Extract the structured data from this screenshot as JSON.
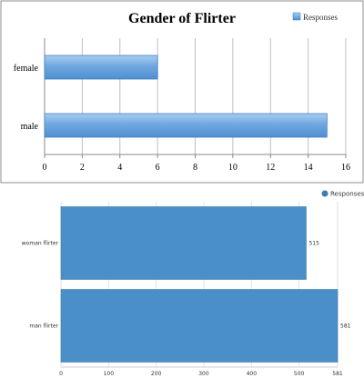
{
  "chart_data": [
    {
      "type": "bar",
      "orientation": "horizontal",
      "title": "Gender of Flirter",
      "categories": [
        "female",
        "male"
      ],
      "series": [
        {
          "name": "Responses",
          "values": [
            6,
            15
          ]
        }
      ],
      "xlim": [
        0,
        16
      ],
      "xticks": [
        0,
        2,
        4,
        6,
        8,
        10,
        12,
        14,
        16
      ],
      "grid": true,
      "legend": "top-right",
      "colors": {
        "bar": "#6fa8e0",
        "bar_edge": "#3f7fc4",
        "grid": "#bfbfbf",
        "frame": "#8c8c8c"
      }
    },
    {
      "type": "bar",
      "orientation": "horizontal",
      "categories": [
        "woman flirter",
        "man flirter"
      ],
      "series": [
        {
          "name": "Responses",
          "values": [
            515,
            581
          ]
        }
      ],
      "data_labels": [
        "515",
        "581"
      ],
      "xlim": [
        0,
        581
      ],
      "xticks": [
        0,
        100,
        200,
        300,
        400,
        500,
        581
      ],
      "grid": true,
      "legend": "top-right",
      "colors": {
        "bar": "#4a8fc7",
        "bar_edge": "#3b7cb2",
        "grid": "#e2e2e2"
      }
    }
  ]
}
